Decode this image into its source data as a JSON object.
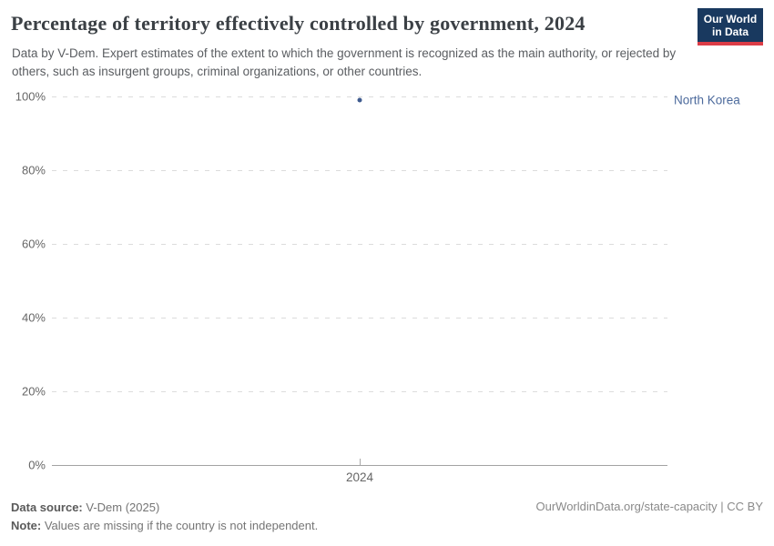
{
  "header": {
    "title": "Percentage of territory effectively controlled by government, 2024",
    "subtitle": "Data by V-Dem. Expert estimates of the extent to which the government is recognized as the main authority, or rejected by others, such as insurgent groups, criminal organizations, or other countries."
  },
  "logo": {
    "line1": "Our World",
    "line2": "in Data",
    "background_color": "#19395f",
    "accent_color": "#dc3d47"
  },
  "chart_data": {
    "type": "scatter",
    "title": "Percentage of territory effectively controlled by government, 2024",
    "points": [
      {
        "label": "North Korea",
        "x": 2024,
        "y": 99
      }
    ],
    "xlabel": "",
    "ylabel": "",
    "ylim": [
      0,
      100
    ],
    "yticks": [
      "100%",
      "80%",
      "60%",
      "40%",
      "20%",
      "0%"
    ],
    "xticks": [
      "2024"
    ],
    "grid": "horizontal-dashed",
    "legend_position": "right-inline-label",
    "colors": {
      "point": "#3e5a8e",
      "series_label": "#4c6a9c"
    }
  },
  "footer": {
    "source_label": "Data source:",
    "source_value": "V-Dem (2025)",
    "note_label": "Note:",
    "note_value": "Values are missing if the country is not independent.",
    "attribution": "OurWorldinData.org/state-capacity | CC BY"
  }
}
